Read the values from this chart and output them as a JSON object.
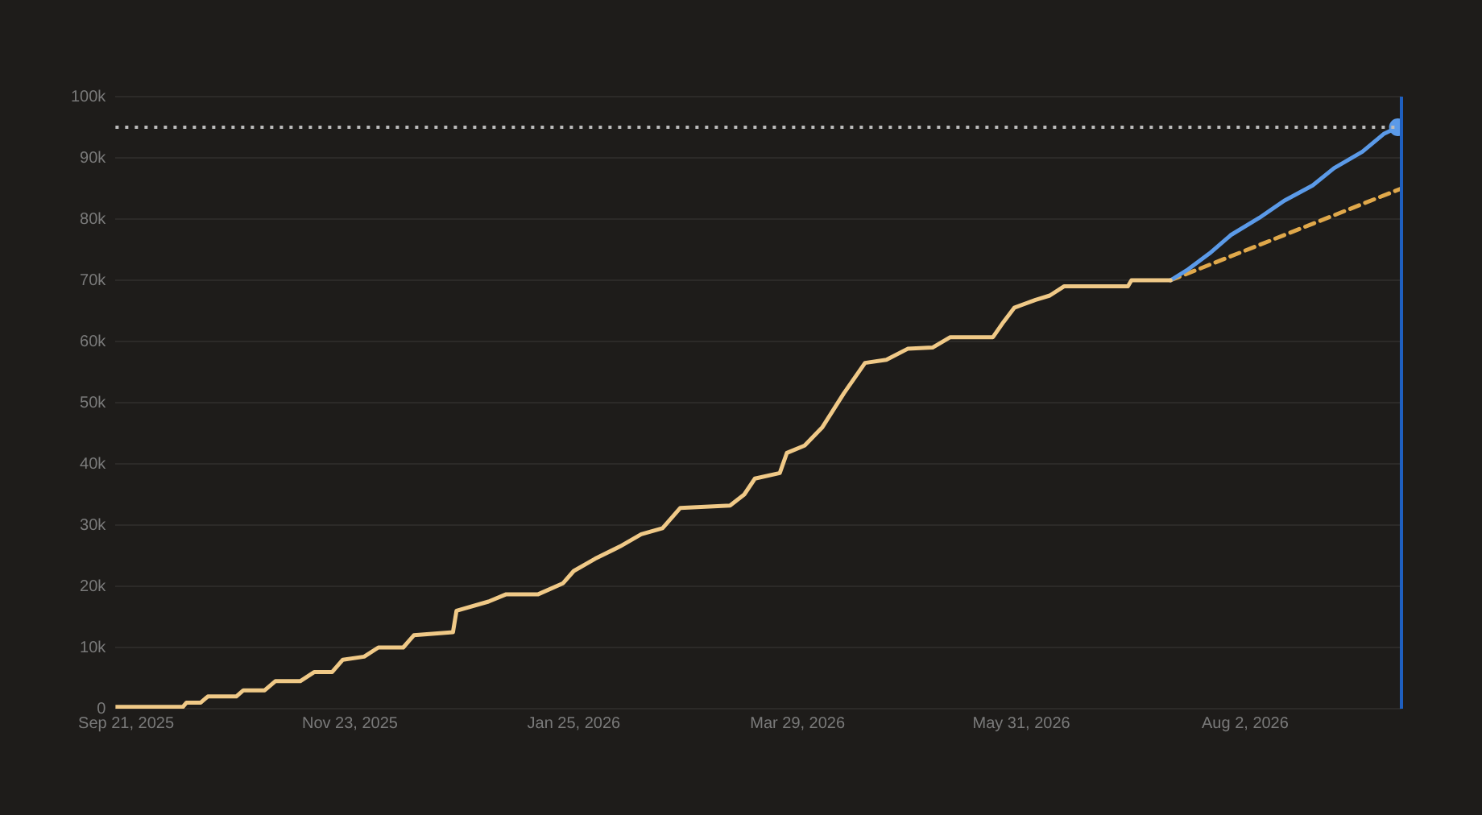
{
  "chart_data": {
    "type": "line",
    "x": [
      "2025-09-18",
      "2025-10-07",
      "2025-10-08",
      "2025-10-12",
      "2025-10-14",
      "2025-10-22",
      "2025-10-24",
      "2025-10-30",
      "2025-11-02",
      "2025-11-09",
      "2025-11-13",
      "2025-11-18",
      "2025-11-21",
      "2025-11-27",
      "2025-12-01",
      "2025-12-08",
      "2025-12-11",
      "2025-12-22",
      "2025-12-23",
      "2026-01-01",
      "2026-01-06",
      "2026-01-15",
      "2026-01-22",
      "2026-01-25",
      "2026-01-31",
      "2026-02-07",
      "2026-02-13",
      "2026-02-19",
      "2026-02-24",
      "2026-03-10",
      "2026-03-14",
      "2026-03-17",
      "2026-03-24",
      "2026-03-26",
      "2026-03-31",
      "2026-04-05",
      "2026-04-11",
      "2026-04-17",
      "2026-04-23",
      "2026-04-29",
      "2026-05-06",
      "2026-05-11",
      "2026-05-23",
      "2026-05-26",
      "2026-05-29",
      "2026-06-04",
      "2026-06-08",
      "2026-06-12",
      "2026-06-30",
      "2026-07-01",
      "2026-07-12"
    ],
    "series": [
      {
        "type": "line",
        "color": "#f0c987",
        "values": [
          300,
          300,
          1000,
          1000,
          2000,
          2000,
          3000,
          3000,
          4500,
          4500,
          6000,
          6000,
          8000,
          8500,
          10000,
          10000,
          12000,
          12500,
          16000,
          17500,
          18700,
          18700,
          20500,
          22500,
          24500,
          26500,
          28500,
          29500,
          32800,
          33200,
          35000,
          37600,
          38500,
          41800,
          43000,
          46000,
          51500,
          56500,
          57000,
          58800,
          59000,
          60700,
          60700,
          63200,
          65500,
          66800,
          67500,
          69000,
          69000,
          70000,
          70000
        ]
      },
      {
        "type": "line",
        "color": "#5b9ae8",
        "x": [
          "2026-07-12",
          "2026-07-17",
          "2026-07-23",
          "2026-07-29",
          "2026-08-06",
          "2026-08-13",
          "2026-08-21",
          "2026-08-27",
          "2026-09-04",
          "2026-09-10",
          "2026-09-14"
        ],
        "values": [
          70000,
          71800,
          74400,
          77400,
          80200,
          83000,
          85500,
          88300,
          91000,
          93900,
          95000
        ]
      },
      {
        "type": "line",
        "color": "#e0a84a",
        "line_style": "dashed",
        "x": [
          "2026-07-12",
          "2026-09-15"
        ],
        "values": [
          70000,
          85000
        ]
      },
      {
        "type": "scatter",
        "color": "#5b9ae8",
        "marker": "circle",
        "x": [
          "2026-09-14"
        ],
        "values": [
          95000
        ]
      }
    ],
    "xlim": [
      "2025-09-18",
      "2026-09-15"
    ],
    "xticks": [
      {
        "value": "2025-09-21",
        "label": "Sep 21, 2025"
      },
      {
        "value": "2025-11-23",
        "label": "Nov 23, 2025"
      },
      {
        "value": "2026-01-25",
        "label": "Jan 25, 2026"
      },
      {
        "value": "2026-03-29",
        "label": "Mar 29, 2026"
      },
      {
        "value": "2026-05-31",
        "label": "May 31, 2026"
      },
      {
        "value": "2026-08-02",
        "label": "Aug 2, 2026"
      }
    ],
    "ylim": [
      0,
      100000
    ],
    "yticks": [
      0,
      {
        "value": 10000,
        "label": "10k"
      },
      {
        "value": 20000,
        "label": "20k"
      },
      {
        "value": 30000,
        "label": "30k"
      },
      {
        "value": 40000,
        "label": "40k"
      },
      {
        "value": 50000,
        "label": "50k"
      },
      {
        "value": 60000,
        "label": "60k"
      },
      {
        "value": 70000,
        "label": "70k"
      },
      {
        "value": 80000,
        "label": "80k"
      },
      {
        "value": 90000,
        "label": "90k"
      },
      {
        "value": 100000,
        "label": "100k"
      }
    ],
    "grid": "y",
    "legend": false,
    "ref_lines": [
      {
        "axis": "y",
        "value": 95000,
        "color": "#bbbbbb",
        "line_style": "dotted"
      },
      {
        "axis": "x",
        "value": "2026-09-15",
        "color": "#1f5fbf",
        "line_style": "solid"
      }
    ]
  }
}
